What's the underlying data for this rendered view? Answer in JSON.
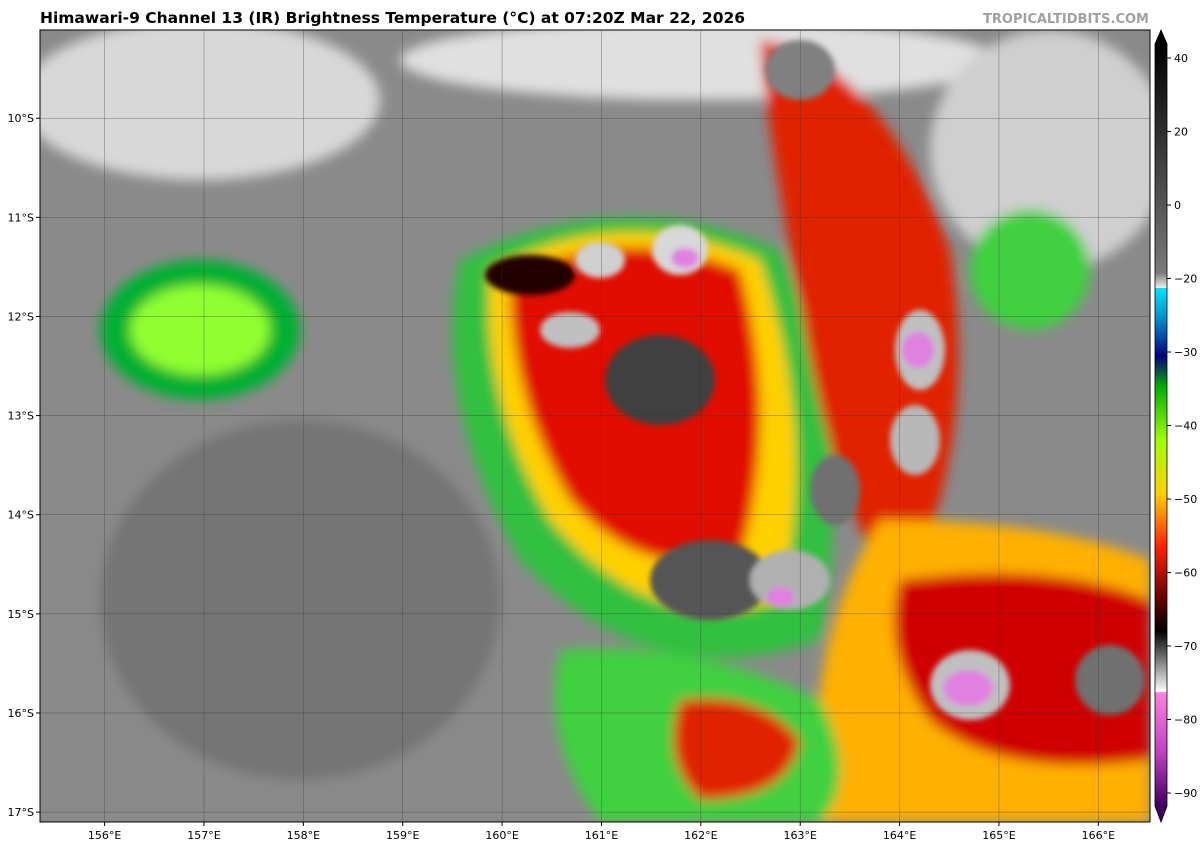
{
  "header": {
    "title": "Himawari-9 Channel 13 (IR) Brightness Temperature (°C) at 07:20Z Mar 22, 2026",
    "watermark": "TROPICALTIDBITS.COM"
  },
  "map": {
    "type": "satellite-image",
    "grid": true,
    "xlim": [
      155.35,
      166.52
    ],
    "ylim": [
      -17.1,
      -9.11
    ],
    "xticks": [
      {
        "value": 156,
        "label": "156°E"
      },
      {
        "value": 157,
        "label": "157°E"
      },
      {
        "value": 158,
        "label": "158°E"
      },
      {
        "value": 159,
        "label": "159°E"
      },
      {
        "value": 160,
        "label": "160°E"
      },
      {
        "value": 161,
        "label": "161°E"
      },
      {
        "value": 162,
        "label": "162°E"
      },
      {
        "value": 163,
        "label": "163°E"
      },
      {
        "value": 164,
        "label": "164°E"
      },
      {
        "value": 165,
        "label": "165°E"
      },
      {
        "value": 166,
        "label": "166°E"
      }
    ],
    "yticks": [
      {
        "value": -10,
        "label": "10°S"
      },
      {
        "value": -11,
        "label": "11°S"
      },
      {
        "value": -12,
        "label": "12°S"
      },
      {
        "value": -13,
        "label": "13°S"
      },
      {
        "value": -14,
        "label": "14°S"
      },
      {
        "value": -15,
        "label": "15°S"
      },
      {
        "value": -16,
        "label": "16°S"
      },
      {
        "value": -17,
        "label": "17°S"
      }
    ]
  },
  "colorbar": {
    "ticks": [
      40,
      20,
      0,
      {
        "value": -20,
        "label": "−20"
      },
      {
        "value": -30,
        "label": "−30"
      },
      {
        "value": -40,
        "label": "−40"
      },
      {
        "value": -50,
        "label": "−50"
      },
      {
        "value": -60,
        "label": "−60"
      },
      {
        "value": -70,
        "label": "−70"
      },
      {
        "value": -80,
        "label": "−80"
      },
      {
        "value": -90,
        "label": "−90"
      }
    ]
  }
}
